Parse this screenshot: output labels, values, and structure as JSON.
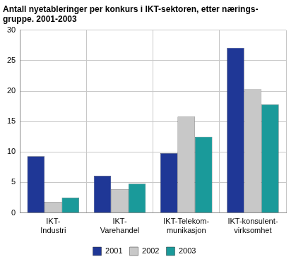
{
  "chart_data": {
    "type": "bar",
    "title": [
      "Antall nyetableringer per konkurs i IKT-sektoren, etter nærings-",
      "gruppe. 2001-2003"
    ],
    "categories": [
      [
        "IKT-",
        "Industri"
      ],
      [
        "IKT-",
        "Varehandel"
      ],
      [
        "IKT-Telekom-",
        "munikasjon"
      ],
      [
        "IKT-konsulent-",
        "virksomhet"
      ]
    ],
    "series": [
      {
        "name": "2001",
        "color": "#1f3796",
        "values": [
          9.3,
          6.1,
          9.8,
          27.1
        ]
      },
      {
        "name": "2002",
        "color": "#c8c8c8",
        "values": [
          1.8,
          3.9,
          15.8,
          20.3
        ]
      },
      {
        "name": "2003",
        "color": "#1a9a9a",
        "values": [
          2.5,
          4.8,
          12.5,
          17.8
        ]
      }
    ],
    "ylim": [
      0,
      30
    ],
    "yticks": [
      0,
      5,
      10,
      15,
      20,
      25,
      30
    ],
    "grid": true,
    "legend": "bottom"
  }
}
